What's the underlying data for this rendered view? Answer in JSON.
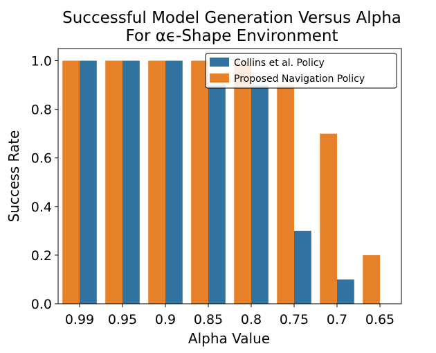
{
  "chart_data": {
    "type": "bar",
    "title_lines": [
      "Successful Model Generation Versus Alpha",
      "For αϵ-Shape Environment"
    ],
    "xlabel": "Alpha Value",
    "ylabel": "Success Rate",
    "categories": [
      "0.99",
      "0.95",
      "0.9",
      "0.85",
      "0.8",
      "0.75",
      "0.7",
      "0.65"
    ],
    "ylim": [
      0,
      1.05
    ],
    "yticks": [
      0.0,
      0.2,
      0.4,
      0.6,
      0.8,
      1.0
    ],
    "ytick_labels": [
      "0.0",
      "0.2",
      "0.4",
      "0.6",
      "0.8",
      "1.0"
    ],
    "series": [
      {
        "name": "Proposed Navigation Policy",
        "color": "#e6812a",
        "values": [
          1.0,
          1.0,
          1.0,
          1.0,
          1.0,
          0.9,
          0.7,
          0.2
        ]
      },
      {
        "name": "Collins et al. Policy",
        "color": "#3274a1",
        "values": [
          1.0,
          1.0,
          1.0,
          0.9,
          0.9,
          0.3,
          0.1,
          0.0
        ]
      }
    ],
    "legend": {
      "position": "top-right",
      "entries": [
        "Collins et al. Policy",
        "Proposed Navigation Policy"
      ]
    },
    "grid": false
  }
}
